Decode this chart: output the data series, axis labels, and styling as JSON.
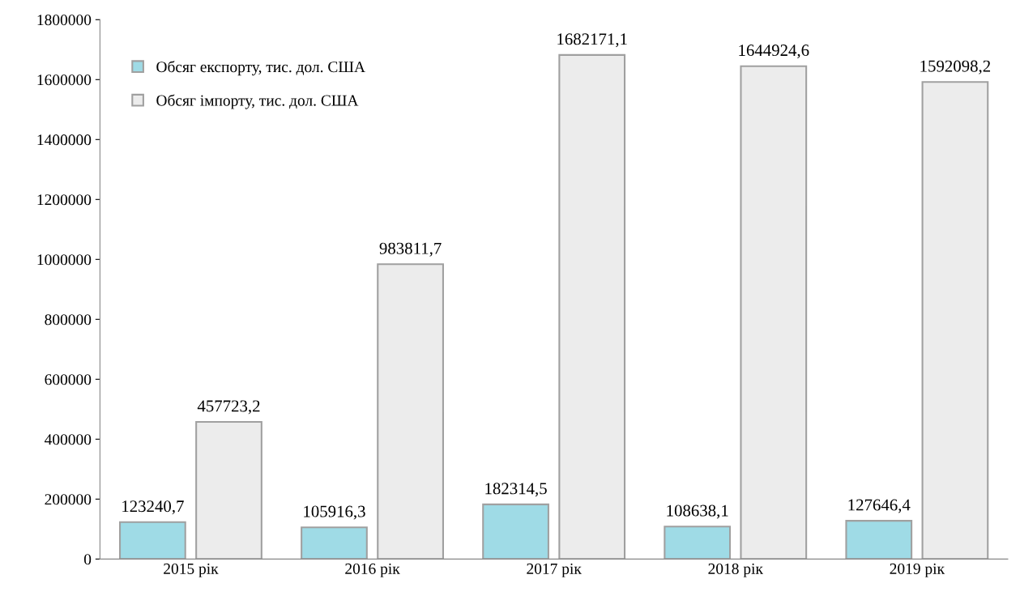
{
  "chart_data": {
    "type": "bar",
    "categories": [
      "2015 рік",
      "2016 рік",
      "2017 рік",
      "2018 рік",
      "2019 рік"
    ],
    "series": [
      {
        "name": "Обсяг експорту, тис. дол. США",
        "color": "#9fdbe6",
        "values": [
          123240.7,
          105916.3,
          182314.5,
          108638.1,
          127646.4
        ],
        "value_labels": [
          "123240,7",
          "105916,3",
          "182314,5",
          "108638,1",
          "127646,4"
        ]
      },
      {
        "name": "Обсяг імпорту, тис. дол. США",
        "color": "#ececec",
        "values": [
          457723.2,
          983811.7,
          1682171.1,
          1644924.6,
          1592098.2
        ],
        "value_labels": [
          "457723,2",
          "983811,7",
          "1682171,1",
          "1644924,6",
          "1592098,2"
        ]
      }
    ],
    "ylim": [
      0,
      1800000
    ],
    "yticks": [
      0,
      200000,
      400000,
      600000,
      800000,
      1000000,
      1200000,
      1400000,
      1600000,
      1800000
    ],
    "grid": false,
    "legend": "top left"
  }
}
